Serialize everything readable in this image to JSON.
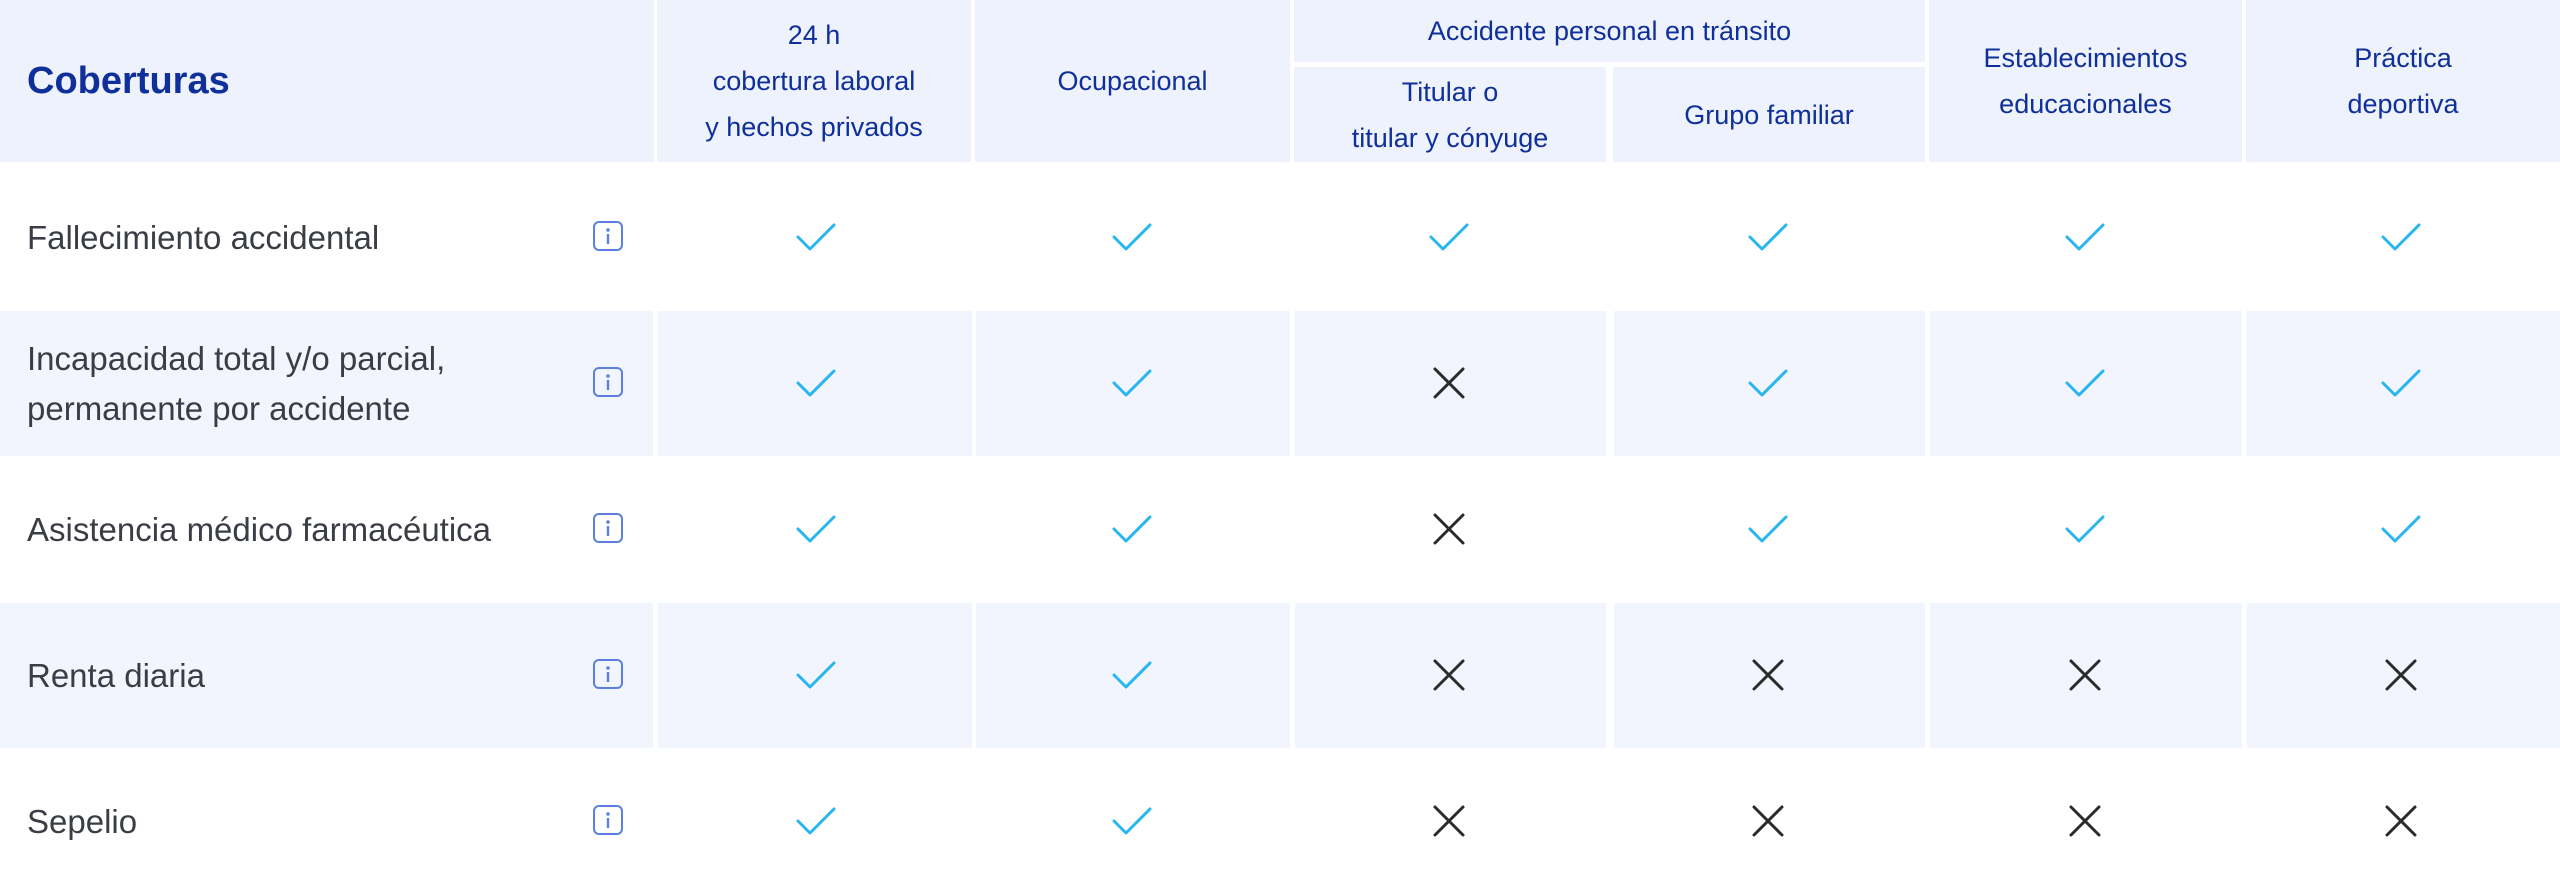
{
  "header": {
    "title": "Coberturas",
    "col_24h": [
      "24 h",
      "cobertura laboral",
      "y hechos privados"
    ],
    "col_ocupacional": "Ocupacional",
    "group_transito": "Accidente personal en tránsito",
    "col_titular": [
      "Titular o",
      "titular y cónyuge"
    ],
    "col_grupo": "Grupo familiar",
    "col_establecimientos": [
      "Establecimientos",
      "educacionales"
    ],
    "col_practica": [
      "Práctica",
      "deportiva"
    ]
  },
  "rows": [
    {
      "label": "Fallecimiento accidental",
      "marks": [
        "check",
        "check",
        "check",
        "check",
        "check",
        "check"
      ]
    },
    {
      "label": "Incapacidad total y/o parcial,\npermanente por accidente",
      "marks": [
        "check",
        "check",
        "cross",
        "check",
        "check",
        "check"
      ]
    },
    {
      "label": "Asistencia médico farmacéutica",
      "marks": [
        "check",
        "check",
        "cross",
        "check",
        "check",
        "check"
      ]
    },
    {
      "label": "Renta diaria",
      "marks": [
        "check",
        "check",
        "cross",
        "cross",
        "cross",
        "cross"
      ]
    },
    {
      "label": "Sepelio",
      "marks": [
        "check",
        "check",
        "cross",
        "cross",
        "cross",
        "cross"
      ]
    }
  ],
  "icons": {
    "info": "info-icon",
    "check": "check-icon",
    "cross": "cross-icon"
  },
  "colors": {
    "header_bg": "#eef2fc",
    "header_text": "#0f2f9a",
    "row_shade": "#f2f5fd",
    "check": "#29b6f0",
    "cross": "#2b2b2b",
    "info": "#5a7fe0"
  }
}
